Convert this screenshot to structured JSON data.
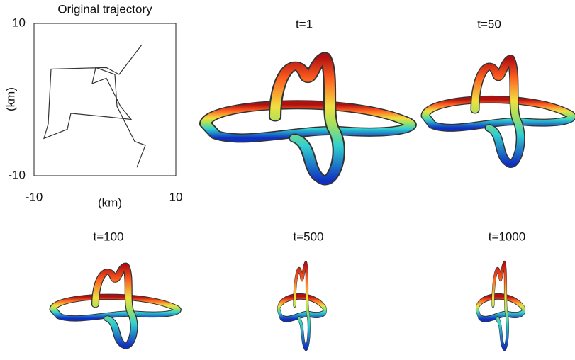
{
  "chart_data": {
    "type": "line",
    "title": "Original trajectory",
    "xlabel": "(km)",
    "ylabel": "(km)",
    "xlim": [
      -10,
      10
    ],
    "ylim": [
      -10,
      10
    ],
    "xticks": [
      -10,
      10
    ],
    "yticks": [
      -10,
      10
    ],
    "grid": false,
    "x": [
      5.2,
      2.0,
      0.2,
      -7.6,
      -8.0,
      -8.6,
      -5.3,
      -4.8,
      0.7,
      3.7,
      2.2,
      0.2,
      -1.8,
      -1.3,
      1.4,
      1.7,
      4.2,
      5.7,
      4.5
    ],
    "series": [
      {
        "color": "#333333",
        "values": [
          7.2,
          3.3,
          4.2,
          4.0,
          -3.2,
          -5.1,
          -3.9,
          -1.8,
          -2.3,
          -2.6,
          -0.9,
          2.8,
          2.1,
          4.2,
          3.3,
          -0.9,
          -5.5,
          -6.0,
          -8.9
        ]
      }
    ]
  },
  "panels": [
    {
      "label": "t=1"
    },
    {
      "label": "t=50"
    },
    {
      "label": "t=100"
    },
    {
      "label": "t=500"
    },
    {
      "label": "t=1000"
    }
  ]
}
